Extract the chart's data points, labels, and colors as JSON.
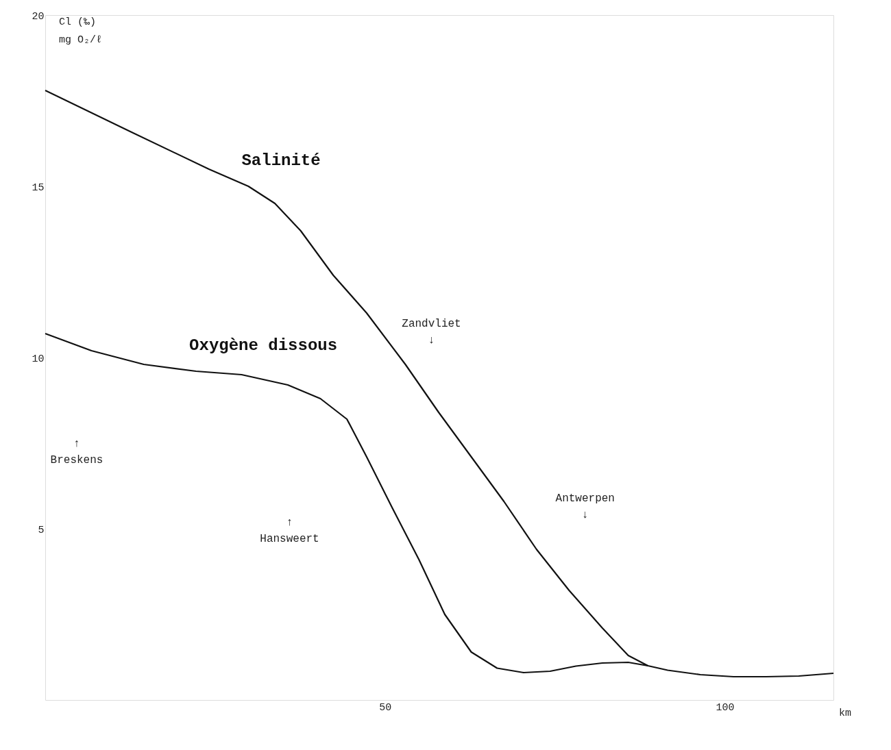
{
  "chart_data": {
    "type": "line",
    "xlabel": "km",
    "ylabel": "Cl (‰)\nmg O₂/ℓ",
    "xlim": [
      0,
      116
    ],
    "xticks": [
      50,
      100
    ],
    "ylim": [
      0,
      20
    ],
    "yticks": [
      5,
      10,
      15,
      20
    ],
    "grid": false,
    "marker": "none",
    "line_style": "solid",
    "series": [
      {
        "name": "Salinité",
        "color": "#111111",
        "x": [
          0,
          12.5,
          24.1,
          29.9,
          33.8,
          37.6,
          42.4,
          47.3,
          53.0,
          57.9,
          62.7,
          67.5,
          72.3,
          77.1,
          82.0,
          85.8,
          88.7,
          91.6,
          96.4,
          101.3,
          106.1,
          110.9,
          116.0
        ],
        "values": [
          17.8,
          16.6,
          15.5,
          15.0,
          14.5,
          13.7,
          12.4,
          11.3,
          9.8,
          8.4,
          7.1,
          5.8,
          4.4,
          3.2,
          2.1,
          1.3,
          1.0,
          0.87,
          0.74,
          0.68,
          0.68,
          0.7,
          0.78
        ]
      },
      {
        "name": "Oxygène dissous",
        "color": "#111111",
        "x": [
          0,
          6.8,
          14.5,
          22.2,
          28.9,
          35.7,
          40.5,
          44.4,
          47.3,
          51.1,
          55.0,
          58.8,
          62.7,
          66.5,
          70.4,
          74.3,
          78.1,
          82.0,
          85.8,
          88.7
        ],
        "values": [
          10.7,
          10.2,
          9.8,
          9.6,
          9.5,
          9.2,
          8.8,
          8.2,
          7.1,
          5.6,
          4.1,
          2.5,
          1.4,
          0.93,
          0.8,
          0.84,
          0.99,
          1.08,
          1.1,
          1.0
        ]
      }
    ],
    "annotations": [
      "↑\nBreskens",
      "↑\nHansweert",
      "Zandvliet\n↓",
      "Antwerpen\n↓"
    ]
  }
}
